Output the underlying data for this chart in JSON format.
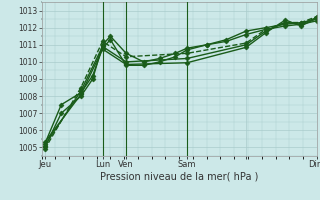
{
  "bg_color": "#cce8e8",
  "grid_color": "#aacccc",
  "line_color": "#1a5c1a",
  "title": "Pression niveau de la mer( hPa )",
  "ylim": [
    1004.5,
    1013.5
  ],
  "yticks": [
    1005,
    1006,
    1007,
    1008,
    1009,
    1010,
    1011,
    1012,
    1013
  ],
  "xlim": [
    0,
    7.0
  ],
  "xtick_positions": [
    0.08,
    1.55,
    2.15,
    3.7,
    5.2,
    7.0
  ],
  "xtick_labels": [
    "Jeu",
    "Lun",
    "Ven",
    "Sam",
    "",
    "Dim"
  ],
  "vlines_x": [
    1.55,
    2.15,
    3.7
  ],
  "series": [
    {
      "x": [
        0.08,
        0.5,
        1.0,
        1.3,
        1.55,
        1.75,
        2.15,
        2.6,
        3.0,
        3.4,
        3.7,
        4.2,
        4.7,
        5.2,
        5.7,
        6.2,
        6.6,
        7.0
      ],
      "y": [
        1005.0,
        1007.0,
        1008.0,
        1009.0,
        1011.0,
        1011.5,
        1010.5,
        1010.0,
        1010.2,
        1010.5,
        1010.8,
        1011.0,
        1011.3,
        1011.8,
        1012.0,
        1012.2,
        1012.3,
        1012.5
      ],
      "lw": 1.0,
      "ls": "-",
      "marker": "D",
      "ms": 2.5
    },
    {
      "x": [
        0.08,
        0.5,
        1.0,
        1.3,
        1.55,
        1.75,
        2.15,
        2.6,
        3.0,
        3.4,
        3.7,
        4.2,
        4.7,
        5.2,
        5.7,
        6.2,
        6.6,
        7.0
      ],
      "y": [
        1005.2,
        1007.5,
        1008.2,
        1009.2,
        1010.8,
        1011.3,
        1009.8,
        1009.8,
        1010.0,
        1010.3,
        1010.7,
        1011.0,
        1011.2,
        1011.6,
        1011.9,
        1012.1,
        1012.2,
        1012.4
      ],
      "lw": 1.0,
      "ls": "-",
      "marker": "D",
      "ms": 2.5
    },
    {
      "x": [
        0.08,
        1.0,
        1.55,
        2.15,
        3.7,
        5.2,
        5.7,
        6.2,
        6.6,
        7.0
      ],
      "y": [
        1004.9,
        1008.5,
        1011.2,
        1010.3,
        1010.5,
        1011.1,
        1011.9,
        1012.3,
        1012.3,
        1012.65
      ],
      "lw": 1.0,
      "ls": "--",
      "marker": "D",
      "ms": 2.5
    },
    {
      "x": [
        0.08,
        1.0,
        1.55,
        2.15,
        3.7,
        5.2,
        5.7,
        6.2,
        6.6,
        7.0
      ],
      "y": [
        1005.1,
        1008.3,
        1010.9,
        1010.0,
        1010.2,
        1011.0,
        1011.8,
        1012.3,
        1012.2,
        1012.6
      ],
      "lw": 1.0,
      "ls": "-",
      "marker": "D",
      "ms": 2.5
    },
    {
      "x": [
        0.08,
        1.0,
        1.55,
        2.15,
        3.7,
        5.2,
        5.7,
        6.2,
        6.6,
        7.0
      ],
      "y": [
        1005.3,
        1008.1,
        1010.75,
        1009.85,
        1009.95,
        1010.85,
        1011.7,
        1012.45,
        1012.1,
        1012.55
      ],
      "lw": 1.0,
      "ls": "-",
      "marker": "D",
      "ms": 2.5
    }
  ]
}
